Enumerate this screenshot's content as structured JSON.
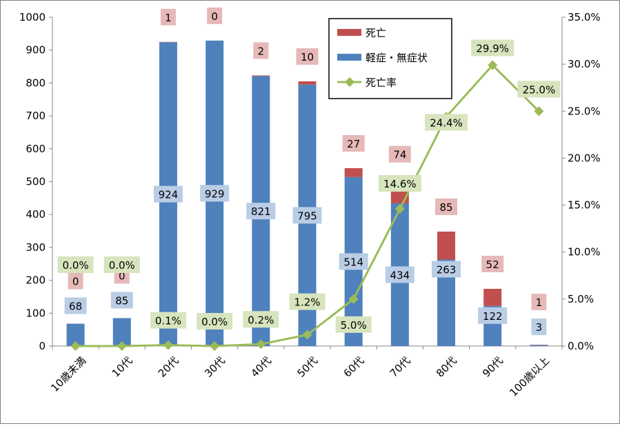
{
  "chart_data": {
    "type": "bar",
    "stacked": true,
    "categories": [
      "10歳未満",
      "10代",
      "20代",
      "30代",
      "40代",
      "50代",
      "60代",
      "70代",
      "80代",
      "90代",
      "100歳以上"
    ],
    "series": [
      {
        "name": "軽症・無症状",
        "axis": "left",
        "kind": "bar",
        "color": "#4f81bd",
        "label_bg": "#b9cde5",
        "values": [
          68,
          85,
          924,
          929,
          821,
          795,
          514,
          434,
          263,
          122,
          3
        ],
        "labels": [
          "68",
          "85",
          "924",
          "929",
          "821",
          "795",
          "514",
          "434",
          "263",
          "122",
          "3"
        ]
      },
      {
        "name": "死亡",
        "axis": "left",
        "kind": "bar",
        "color": "#c0504d",
        "label_bg": "#e6b9b8",
        "values": [
          0,
          0,
          1,
          0,
          2,
          10,
          27,
          74,
          85,
          52,
          1
        ],
        "labels": [
          "0",
          "0",
          "1",
          "0",
          "2",
          "10",
          "27",
          "74",
          "85",
          "52",
          "1"
        ]
      },
      {
        "name": "死亡率",
        "axis": "right",
        "kind": "line",
        "color": "#9bbb59",
        "label_bg": "#d7e4bd",
        "values": [
          0.0,
          0.0,
          0.1,
          0.0,
          0.2,
          1.2,
          5.0,
          14.6,
          24.4,
          29.9,
          25.0
        ],
        "labels": [
          "0.0%",
          "0.0%",
          "0.1%",
          "0.0%",
          "0.2%",
          "1.2%",
          "5.0%",
          "14.6%",
          "24.4%",
          "29.9%",
          "25.0%"
        ]
      }
    ],
    "y_left": {
      "min": 0,
      "max": 1000,
      "ticks": [
        "0",
        "100",
        "200",
        "300",
        "400",
        "500",
        "600",
        "700",
        "800",
        "900",
        "1000"
      ]
    },
    "y_right": {
      "min": 0,
      "max": 35,
      "ticks": [
        "0.0%",
        "5.0%",
        "10.0%",
        "15.0%",
        "20.0%",
        "25.0%",
        "30.0%",
        "35.0%"
      ]
    },
    "grid": false,
    "legend": {
      "position": "top-right",
      "entries": [
        "死亡",
        "軽症・無症状",
        "死亡率"
      ]
    }
  }
}
